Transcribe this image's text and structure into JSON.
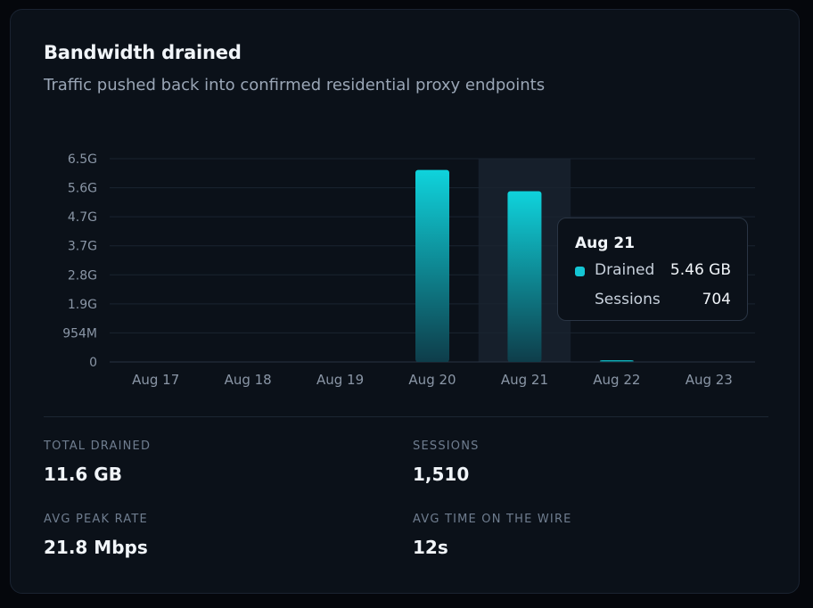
{
  "card": {
    "title": "Bandwidth drained",
    "subtitle": "Traffic pushed back into confirmed residential proxy endpoints"
  },
  "chart_data": {
    "type": "bar",
    "categories": [
      "Aug 17",
      "Aug 18",
      "Aug 19",
      "Aug 20",
      "Aug 21",
      "Aug 22",
      "Aug 23"
    ],
    "values_gb": [
      0,
      0,
      0,
      6.14,
      5.46,
      0.04,
      0
    ],
    "y_tick_labels": [
      "0",
      "954M",
      "1.9G",
      "2.8G",
      "3.7G",
      "4.7G",
      "5.6G",
      "6.5G"
    ],
    "ylim_gb": [
      0,
      6.5
    ],
    "grid": true,
    "highlighted_category": "Aug 21",
    "bar_color_top": "#0fd3dc",
    "bar_color_bottom": "#0e3d4a"
  },
  "tooltip": {
    "title": "Aug 21",
    "rows": [
      {
        "label": "Drained",
        "value": "5.46 GB",
        "swatch": "#14c6d4"
      },
      {
        "label": "Sessions",
        "value": "704"
      }
    ]
  },
  "stats": [
    {
      "label": "TOTAL DRAINED",
      "value": "11.6 GB"
    },
    {
      "label": "SESSIONS",
      "value": "1,510"
    },
    {
      "label": "AVG PEAK RATE",
      "value": "21.8 Mbps"
    },
    {
      "label": "AVG TIME ON THE WIRE",
      "value": "12s"
    }
  ]
}
